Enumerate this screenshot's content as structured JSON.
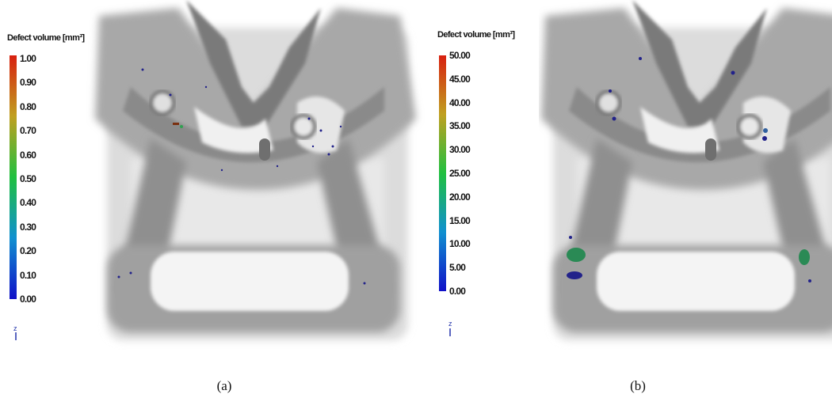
{
  "panels": [
    {
      "colorbar_title": "Defect volume [mm³]",
      "colorbar_labels": [
        "1.00",
        "0.90",
        "0.80",
        "0.70",
        "0.60",
        "0.50",
        "0.40",
        "0.30",
        "0.20",
        "0.10",
        "0.00"
      ],
      "axis_label": "z",
      "caption": "(a)"
    },
    {
      "colorbar_title": "Defect volume [mm³]",
      "colorbar_labels": [
        "50.00",
        "45.00",
        "40.00",
        "35.00",
        "30.00",
        "25.00",
        "20.00",
        "15.00",
        "10.00",
        "5.00",
        "0.00"
      ],
      "axis_label": "z",
      "caption": "(b)"
    }
  ]
}
